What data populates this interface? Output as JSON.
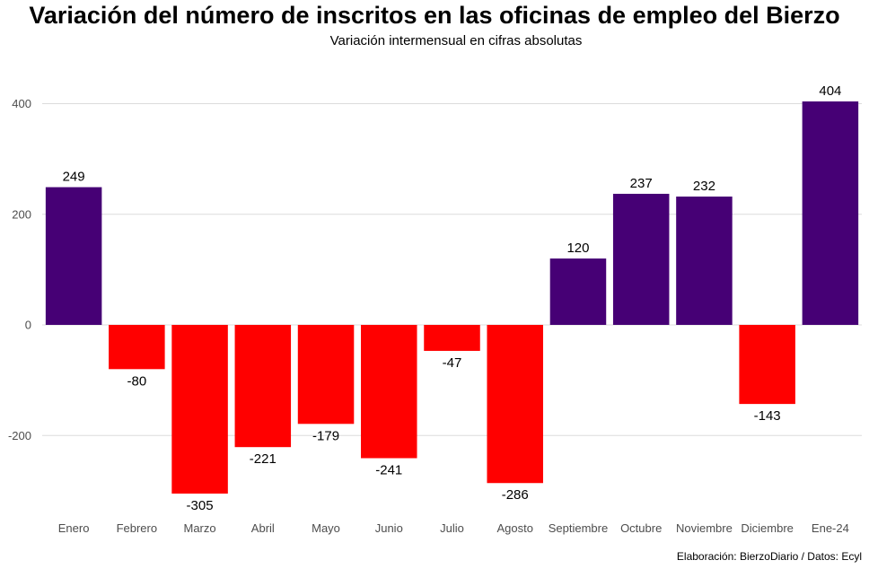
{
  "title": "Variación del número de inscritos en las oficinas de empleo del Bierzo",
  "subtitle": "Variación intermensual en cifras absolutas",
  "caption": "Elaboración: BierzoDiario / Datos: Ecyl",
  "colors": {
    "positive": "#460075",
    "negative": "#ff0000",
    "grid": "#dcdcdc",
    "tick": "#4d4d4d"
  },
  "chart_data": {
    "type": "bar",
    "categories": [
      "Enero",
      "Febrero",
      "Marzo",
      "Abril",
      "Mayo",
      "Junio",
      "Julio",
      "Agosto",
      "Septiembre",
      "Octubre",
      "Noviembre",
      "Diciembre",
      "Ene-24"
    ],
    "values": [
      249,
      -80,
      -305,
      -221,
      -179,
      -241,
      -47,
      -286,
      120,
      237,
      232,
      -143,
      404
    ],
    "data_labels": [
      "249",
      "-80",
      "-305",
      "-221",
      "-179",
      "-241",
      "-47",
      "-286",
      "120",
      "237",
      "232",
      "-143",
      "404"
    ],
    "yticks": [
      400,
      200,
      0,
      -200
    ],
    "ytick_labels": [
      "400",
      "200",
      "0",
      "-200"
    ],
    "ylim": [
      -330,
      425
    ],
    "xlabel": "",
    "ylabel": "",
    "grid": true,
    "legend": "none"
  }
}
